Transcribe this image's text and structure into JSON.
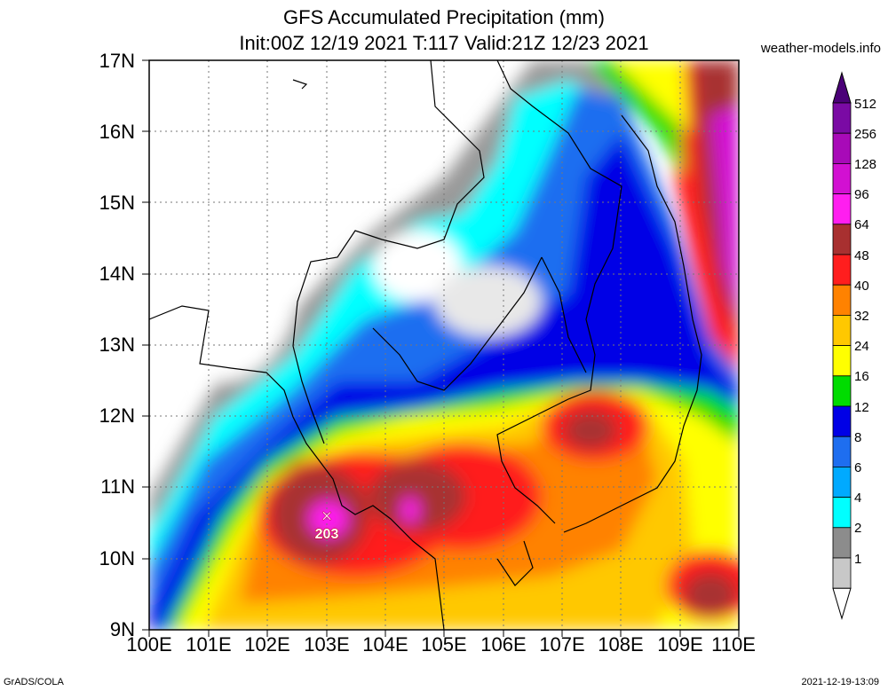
{
  "header": {
    "title": "GFS Accumulated Precipitation (mm)",
    "subtitle": "Init:00Z 12/19 2021 T:117 Valid:21Z 12/23 2021",
    "site": "weather-models.info"
  },
  "footer": {
    "left": "GrADS/COLA",
    "right": "2021-12-19-13:09"
  },
  "axes": {
    "lat_labels": [
      "17N",
      "16N",
      "15N",
      "14N",
      "13N",
      "12N",
      "11N",
      "10N",
      "9N"
    ],
    "lon_labels": [
      "100E",
      "101E",
      "102E",
      "103E",
      "104E",
      "105E",
      "106E",
      "107E",
      "108E",
      "109E",
      "110E"
    ]
  },
  "colorbar": {
    "levels": [
      "512",
      "256",
      "128",
      "96",
      "64",
      "48",
      "40",
      "32",
      "24",
      "16",
      "12",
      "8",
      "6",
      "4",
      "2",
      "1"
    ],
    "colors": [
      "#7a0aa4",
      "#a80ab8",
      "#d210d2",
      "#ff1ef0",
      "#a83030",
      "#ff1e1e",
      "#ff8200",
      "#ffc800",
      "#ffff00",
      "#00dc00",
      "#0000e6",
      "#1e6ef0",
      "#00aaff",
      "#00ffff",
      "#8c8c8c",
      "#c8c8c8"
    ]
  },
  "marker": {
    "symbol": "×",
    "value": "203",
    "lon": 103.0,
    "lat": 10.65
  },
  "map_extent": {
    "lon": [
      100,
      110
    ],
    "lat": [
      9,
      17
    ]
  }
}
